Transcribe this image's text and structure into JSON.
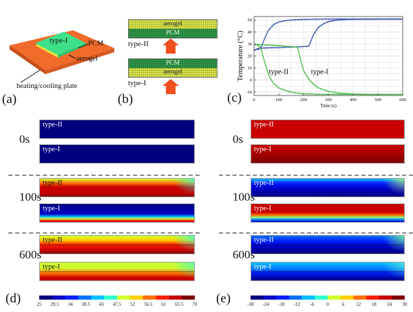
{
  "panels": {
    "a": {
      "label": "(a)",
      "top_text": "type-I",
      "callouts": {
        "pcm": "PCM",
        "aerogel": "aerogel",
        "plate": "heating/cooling plate"
      },
      "colors": {
        "plate": "#f06a2a",
        "pcm": "#3ee08a",
        "aerogel": "#e8e040"
      }
    },
    "b": {
      "label": "(b)",
      "stacks": [
        {
          "type_label": "type-II",
          "layers": [
            "aerogel",
            "PCM"
          ]
        },
        {
          "type_label": "type-I",
          "layers": [
            "PCM",
            "aerogel"
          ]
        }
      ]
    },
    "c": {
      "label": "(c)"
    },
    "d": {
      "label": "(d)",
      "rows": [
        {
          "time": "0s",
          "top": "type-II",
          "bottom": "type-I"
        },
        {
          "time": "100s",
          "top": "type-II",
          "bottom": "type-I"
        },
        {
          "time": "600s",
          "top": "type-II",
          "bottom": "type-I"
        }
      ],
      "colorbar_ticks": [
        "25",
        "29.5",
        "34",
        "38.5",
        "43",
        "47.5",
        "52",
        "56.5",
        "61",
        "65.5",
        "70"
      ]
    },
    "e": {
      "label": "(e)",
      "rows": [
        {
          "time": "0s",
          "top": "type-II",
          "bottom": "type-I"
        },
        {
          "time": "100s",
          "top": "type-II",
          "bottom": "type-I"
        },
        {
          "time": "600s",
          "top": "type-II",
          "bottom": "type-I"
        }
      ],
      "colorbar_ticks": [
        "-30",
        "-24",
        "-18",
        "-12",
        "-6",
        "0",
        "6",
        "12",
        "18",
        "24",
        "30"
      ]
    }
  },
  "chart_data": [
    {
      "type": "line",
      "title": "",
      "xlabel": "Time (s)",
      "ylabel": "Temperature (°C)",
      "xlim": [
        0,
        600
      ],
      "ylim": [
        -13,
        53
      ],
      "xticks": [
        0,
        100,
        200,
        300,
        400,
        500,
        600
      ],
      "yticks": [
        -10,
        0,
        10,
        20,
        30,
        40,
        50
      ],
      "grid": true,
      "annotations": [
        {
          "text": "type-II",
          "x": 60,
          "y": 5
        },
        {
          "text": "type-I",
          "x": 230,
          "y": 5
        }
      ],
      "series": [
        {
          "name": "type-II heating",
          "color": "#3a55b0",
          "x": [
            0,
            10,
            20,
            30,
            40,
            50,
            60,
            80,
            100,
            130,
            160,
            200,
            300,
            400,
            600
          ],
          "y": [
            25,
            25.5,
            26,
            28,
            33,
            38,
            42,
            46.5,
            48.5,
            49.8,
            50.3,
            50.6,
            51,
            51,
            51
          ]
        },
        {
          "name": "type-I heating",
          "color": "#3a55b0",
          "x": [
            0,
            20,
            40,
            100,
            180,
            220,
            225,
            240,
            260,
            280,
            300,
            330,
            370,
            420,
            500,
            600
          ],
          "y": [
            25,
            26.5,
            26.8,
            27.2,
            27.8,
            28.3,
            30,
            38,
            44,
            47,
            48.8,
            50,
            50.6,
            50.9,
            51,
            51
          ]
        },
        {
          "name": "type-II cooling",
          "color": "#4cba4c",
          "x": [
            0,
            10,
            20,
            30,
            40,
            50,
            60,
            70,
            80,
            100,
            130,
            160,
            200,
            300,
            400,
            600
          ],
          "y": [
            30,
            29.5,
            28.5,
            25,
            17,
            10,
            4,
            0,
            -3,
            -6.5,
            -9,
            -10.5,
            -11.5,
            -12,
            -12,
            -12
          ]
        },
        {
          "name": "type-I cooling",
          "color": "#4cba4c",
          "x": [
            0,
            50,
            100,
            150,
            175,
            180,
            190,
            200,
            220,
            240,
            260,
            300,
            350,
            400,
            500,
            600
          ],
          "y": [
            30,
            29.3,
            28.7,
            28,
            27.5,
            24,
            15,
            8,
            1,
            -3.5,
            -6.5,
            -9.5,
            -11,
            -11.6,
            -12,
            -12
          ]
        }
      ]
    },
    {
      "type": "heatmap",
      "title": "heating temperature fields",
      "colorbar": {
        "min": 25,
        "max": 70,
        "unit": "°C"
      },
      "frames": [
        {
          "time": "0s",
          "type-II": "uniform 25",
          "type-I": "uniform 25"
        },
        {
          "time": "100s",
          "type-II": "52 at top edge to 70 at bottom",
          "type-I": "25 in upper region, 70 at bottom edge"
        },
        {
          "time": "600s",
          "type-II": "47 at top corners to 70 at bottom",
          "type-I": "47 at top to 70 at bottom edge"
        }
      ]
    },
    {
      "type": "heatmap",
      "title": "cooling temperature fields",
      "colorbar": {
        "min": -30,
        "max": 30,
        "unit": "°C"
      },
      "frames": [
        {
          "time": "0s",
          "type-II": "uniform 30",
          "type-I": "uniform 30"
        },
        {
          "time": "100s",
          "type-II": "-6 at top corners to -30 at bottom",
          "type-I": "30 in upper region, -30 at bottom edge"
        },
        {
          "time": "600s",
          "type-II": "0 at top-right corner to -30 at bottom",
          "type-I": "-6 at top-right to -30 at bottom edge"
        }
      ]
    }
  ]
}
